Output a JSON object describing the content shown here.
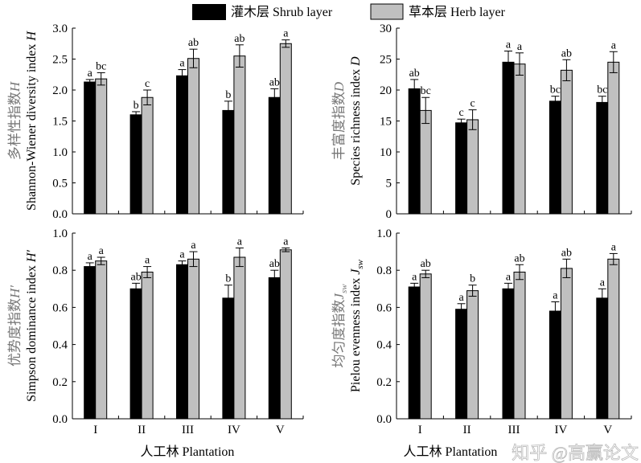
{
  "legend": [
    {
      "label": "灌木层 Shrub layer",
      "color": "#000000"
    },
    {
      "label": "草本层 Herb layer",
      "color": "#c0c0c0"
    }
  ],
  "watermark": "知乎 @高赢论文",
  "chart_data": [
    {
      "type": "bar",
      "ylabel_cn": "多样性指数",
      "ylabel_cn_sym": "H",
      "ylabel_en": "Shannon-Wiener diversity index ",
      "ylabel_sym": "H",
      "ylabel_sub": "",
      "ylim": [
        0,
        3.0
      ],
      "yticks": [
        "0.0",
        "0.5",
        "1.0",
        "1.5",
        "2.0",
        "2.5",
        "3.0"
      ],
      "categories": [
        "I",
        "II",
        "III",
        "IV",
        "V"
      ],
      "xlabel": "",
      "series": [
        {
          "name": "灌木层 Shrub layer",
          "values": [
            2.13,
            1.6,
            2.23,
            1.67,
            1.88
          ],
          "errors": [
            0.04,
            0.05,
            0.1,
            0.15,
            0.14
          ],
          "letters": [
            "a",
            "b",
            "a",
            "b",
            "ab"
          ]
        },
        {
          "name": "草本层 Herb layer",
          "values": [
            2.18,
            1.88,
            2.51,
            2.55,
            2.75
          ],
          "errors": [
            0.1,
            0.12,
            0.15,
            0.18,
            0.06
          ],
          "letters": [
            "bc",
            "c",
            "ab",
            "ab",
            "a"
          ]
        }
      ]
    },
    {
      "type": "bar",
      "ylabel_cn": "丰富度指数",
      "ylabel_cn_sym": "D",
      "ylabel_en": "Species richness index ",
      "ylabel_sym": "D",
      "ylabel_sub": "",
      "ylim": [
        0,
        30
      ],
      "yticks": [
        "0",
        "5",
        "10",
        "15",
        "20",
        "25",
        "30"
      ],
      "categories": [
        "I",
        "II",
        "III",
        "IV",
        "V"
      ],
      "xlabel": "",
      "series": [
        {
          "name": "灌木层 Shrub layer",
          "values": [
            20.2,
            14.7,
            24.5,
            18.2,
            18.0
          ],
          "errors": [
            1.5,
            0.6,
            1.8,
            0.8,
            1.0
          ],
          "letters": [
            "ab",
            "c",
            "a",
            "bc",
            "bc"
          ]
        },
        {
          "name": "草本层 Herb layer",
          "values": [
            16.7,
            15.2,
            24.2,
            23.2,
            24.5
          ],
          "errors": [
            2.1,
            1.6,
            1.8,
            1.7,
            1.7
          ],
          "letters": [
            "bc",
            "c",
            "a",
            "ab",
            "a"
          ]
        }
      ]
    },
    {
      "type": "bar",
      "ylabel_cn": "优势度指数",
      "ylabel_cn_sym": "H′",
      "ylabel_en": "Simpson dominance index ",
      "ylabel_sym": "H′",
      "ylabel_sub": "",
      "ylim": [
        0,
        1.0
      ],
      "yticks": [
        "0.0",
        "0.2",
        "0.4",
        "0.6",
        "0.8",
        "1.0"
      ],
      "categories": [
        "I",
        "II",
        "III",
        "IV",
        "V"
      ],
      "xlabel": "人工林 Plantation",
      "series": [
        {
          "name": "灌木层 Shrub layer",
          "values": [
            0.82,
            0.7,
            0.83,
            0.65,
            0.76
          ],
          "errors": [
            0.02,
            0.03,
            0.02,
            0.07,
            0.04
          ],
          "letters": [
            "a",
            "ab",
            "a",
            "b",
            "ab"
          ]
        },
        {
          "name": "草本层 Herb layer",
          "values": [
            0.85,
            0.79,
            0.86,
            0.87,
            0.91
          ],
          "errors": [
            0.02,
            0.03,
            0.04,
            0.05,
            0.01
          ],
          "letters": [
            "a",
            "a",
            "a",
            "a",
            "a"
          ]
        }
      ]
    },
    {
      "type": "bar",
      "ylabel_cn": "均匀度指数",
      "ylabel_cn_sym": "J",
      "ylabel_cn_sub": "sw",
      "ylabel_en": "Pielou evenness index ",
      "ylabel_sym": "J",
      "ylabel_sub": "sw",
      "ylim": [
        0,
        1.0
      ],
      "yticks": [
        "0.0",
        "0.2",
        "0.4",
        "0.6",
        "0.8",
        "1.0"
      ],
      "categories": [
        "I",
        "II",
        "III",
        "IV",
        "V"
      ],
      "xlabel": "人工林 Plantation",
      "series": [
        {
          "name": "灌木层 Shrub layer",
          "values": [
            0.71,
            0.59,
            0.7,
            0.58,
            0.65
          ],
          "errors": [
            0.02,
            0.03,
            0.03,
            0.05,
            0.05
          ],
          "letters": [
            "a",
            "a",
            "a",
            "a",
            "a"
          ]
        },
        {
          "name": "草本层 Herb layer",
          "values": [
            0.78,
            0.69,
            0.79,
            0.81,
            0.86
          ],
          "errors": [
            0.02,
            0.03,
            0.04,
            0.05,
            0.03
          ],
          "letters": [
            "ab",
            "b",
            "ab",
            "ab",
            "a"
          ]
        }
      ]
    }
  ]
}
